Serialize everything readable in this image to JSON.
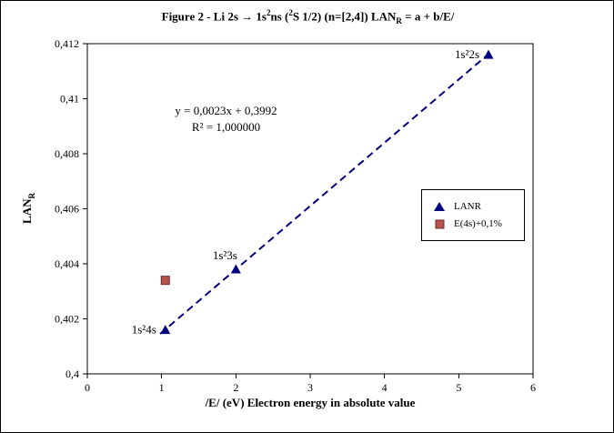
{
  "title": {
    "pre": "Figure 2 - Li 2s → 1s",
    "sup1": "2",
    "mid1": "ns (",
    "sup2": "2",
    "mid2": "S 1/2) (n=[2,4]) LAN",
    "sub1": "R",
    "post": " = a + b/E/"
  },
  "ylabel_rich": {
    "main": "LAN",
    "sub": "R"
  },
  "chart_data": {
    "type": "scatter",
    "title": "Figure 2 - Li 2s → 1s²ns (²S 1/2) (n=[2,4]) LANR = a + b/E/",
    "xlabel": "/E/ (eV) Electron energy in absolute value",
    "ylabel": "LANR",
    "xlim": [
      0,
      6
    ],
    "ylim": [
      0.4,
      0.412
    ],
    "grid": false,
    "legend_position": "right-inside",
    "xticks": {
      "values": [
        0,
        1,
        2,
        3,
        4,
        5,
        6
      ],
      "labels": [
        "0",
        "1",
        "2",
        "3",
        "4",
        "5",
        "6"
      ]
    },
    "yticks": {
      "values": [
        0.4,
        0.402,
        0.404,
        0.406,
        0.408,
        0.41,
        0.412
      ],
      "labels": [
        "0,4",
        "0,402",
        "0,404",
        "0,406",
        "0,408",
        "0,41",
        "0,412"
      ]
    },
    "series": [
      {
        "name": "LANR",
        "marker": "triangle",
        "color": "#000080",
        "points": [
          {
            "x": 1.05,
            "y": 0.4016,
            "label": "1s²4s",
            "label_pos": "left"
          },
          {
            "x": 2.0,
            "y": 0.4038,
            "label": "1s²3s",
            "label_pos": "above"
          },
          {
            "x": 5.4,
            "y": 0.4116,
            "label": "1s²2s",
            "label_pos": "left"
          }
        ]
      },
      {
        "name": "E(4s)+0,1%",
        "marker": "square",
        "color": "#b5524e",
        "stroke": "#6e2c2a",
        "points": [
          {
            "x": 1.05,
            "y": 0.4034
          }
        ]
      }
    ],
    "trendline": {
      "slope": 0.0023,
      "intercept": 0.3992,
      "x_start": 0.98,
      "x_end": 5.4,
      "style": "dashed",
      "color": "#000080",
      "equation": "y = 0,0023x + 0,3992",
      "r_squared": "R² = 1,000000"
    }
  }
}
